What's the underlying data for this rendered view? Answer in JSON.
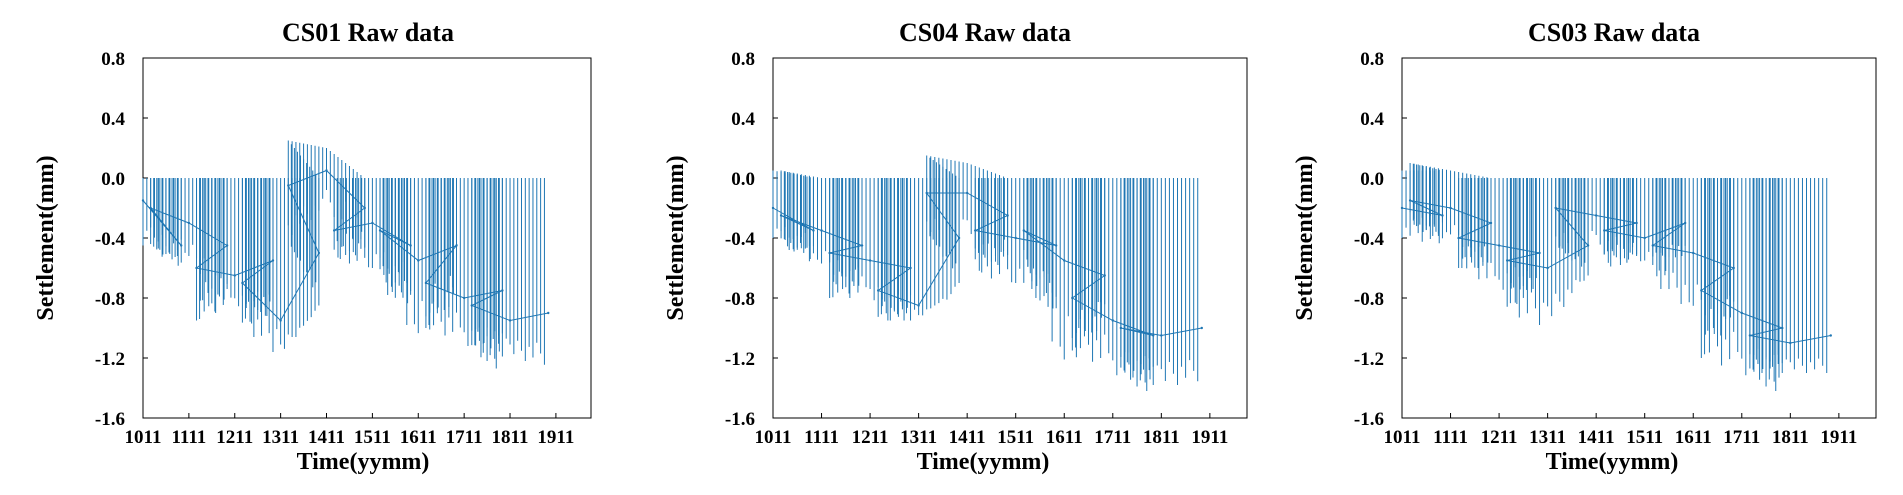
{
  "series_color": "#1f77b4",
  "chart_data": [
    {
      "type": "line",
      "title": "CS01 Raw data",
      "xlabel": "Time(yymm)",
      "ylabel": "Settlement(mm)",
      "ylim": [
        -1.6,
        0.8
      ],
      "yticks": [
        "0.8",
        "0.4",
        "0.0",
        "-0.4",
        "-0.8",
        "-1.2",
        "-1.6"
      ],
      "xticks": [
        "1011",
        "1111",
        "1211",
        "1311",
        "1411",
        "1511",
        "1611",
        "1711",
        "1811",
        "1911"
      ],
      "grid": false,
      "series": [
        {
          "x": [
            "1011",
            "1021",
            "1101",
            "1111",
            "1121",
            "1201",
            "1211",
            "1221",
            "1301",
            "1311",
            "1321",
            "1401",
            "1411",
            "1421",
            "1501",
            "1511",
            "1521",
            "1601",
            "1611",
            "1621",
            "1701",
            "1711",
            "1721",
            "1801",
            "1811",
            "1821"
          ],
          "y": [
            -0.15,
            -0.45,
            -0.2,
            -0.3,
            -0.45,
            -0.6,
            -0.65,
            -0.55,
            -0.7,
            -0.95,
            -0.5,
            -0.05,
            0.05,
            -0.2,
            -0.35,
            -0.3,
            -0.45,
            -0.35,
            -0.55,
            -0.45,
            -0.7,
            -0.8,
            -0.75,
            -0.85,
            -0.95,
            -0.9
          ],
          "min": [
            -0.45,
            -0.6,
            -0.45,
            -0.55,
            -0.85,
            -0.95,
            -0.85,
            -0.9,
            -1.0,
            -1.2,
            -0.85,
            -0.4,
            -0.2,
            -0.5,
            -0.55,
            -0.6,
            -0.85,
            -0.7,
            -1.1,
            -0.8,
            -1.0,
            -1.1,
            -1.3,
            -1.15,
            -1.2,
            -1.25
          ],
          "max": [
            0.0,
            0.0,
            0.0,
            0.0,
            0.0,
            0.0,
            0.0,
            0.0,
            0.0,
            0.0,
            0.0,
            0.25,
            0.2,
            0.0,
            0.0,
            0.0,
            0.0,
            0.0,
            0.0,
            0.0,
            0.0,
            0.0,
            0.0,
            0.0,
            0.0,
            0.0
          ]
        }
      ]
    },
    {
      "type": "line",
      "title": "CS04 Raw data",
      "xlabel": "Time(yymm)",
      "ylabel": "Settlement(mm)",
      "ylim": [
        -1.6,
        0.8
      ],
      "yticks": [
        "0.8",
        "0.4",
        "0.0",
        "-0.4",
        "-0.8",
        "-1.2",
        "-1.6"
      ],
      "xticks": [
        "1011",
        "1111",
        "1211",
        "1311",
        "1411",
        "1511",
        "1611",
        "1711",
        "1811",
        "1911"
      ],
      "grid": false,
      "series": [
        {
          "x": [
            "1011",
            "1021",
            "1101",
            "1111",
            "1121",
            "1201",
            "1211",
            "1221",
            "1301",
            "1311",
            "1321",
            "1401",
            "1411",
            "1421",
            "1501",
            "1511",
            "1521",
            "1601",
            "1611",
            "1621",
            "1701",
            "1711",
            "1721",
            "1801",
            "1811",
            "1821"
          ],
          "y": [
            -0.2,
            -0.35,
            -0.25,
            -0.35,
            -0.45,
            -0.5,
            -0.55,
            -0.6,
            -0.75,
            -0.85,
            -0.4,
            -0.1,
            -0.1,
            -0.25,
            -0.35,
            -0.4,
            -0.45,
            -0.35,
            -0.55,
            -0.65,
            -0.8,
            -0.95,
            -1.05,
            -1.0,
            -1.05,
            -1.0
          ],
          "min": [
            -0.4,
            -0.55,
            -0.45,
            -0.6,
            -0.75,
            -0.8,
            -0.8,
            -0.95,
            -0.95,
            -0.95,
            -0.7,
            -0.35,
            -0.45,
            -0.55,
            -0.65,
            -0.7,
            -0.9,
            -0.6,
            -1.3,
            -0.95,
            -1.15,
            -1.3,
            -1.45,
            -1.3,
            -1.4,
            -1.35
          ],
          "max": [
            0.05,
            0.0,
            0.05,
            0.0,
            0.0,
            0.0,
            0.0,
            0.0,
            0.0,
            0.0,
            0.0,
            0.15,
            0.1,
            0.0,
            0.0,
            0.0,
            0.0,
            0.0,
            0.0,
            0.0,
            0.0,
            0.0,
            0.0,
            0.0,
            0.0,
            0.0
          ]
        }
      ]
    },
    {
      "type": "line",
      "title": "CS03 Raw data",
      "xlabel": "Time(yymm)",
      "ylabel": "Settlement(mm)",
      "ylim": [
        -1.6,
        0.8
      ],
      "yticks": [
        "0.8",
        "0.4",
        "0.0",
        "-0.4",
        "-0.8",
        "-1.2",
        "-1.6"
      ],
      "xticks": [
        "1011",
        "1111",
        "1211",
        "1311",
        "1411",
        "1511",
        "1611",
        "1711",
        "1811",
        "1911"
      ],
      "grid": false,
      "series": [
        {
          "x": [
            "1011",
            "1021",
            "1101",
            "1111",
            "1121",
            "1201",
            "1211",
            "1221",
            "1301",
            "1311",
            "1321",
            "1401",
            "1411",
            "1421",
            "1501",
            "1511",
            "1521",
            "1601",
            "1611",
            "1621",
            "1701",
            "1711",
            "1721",
            "1801",
            "1811",
            "1821"
          ],
          "y": [
            -0.2,
            -0.25,
            -0.15,
            -0.2,
            -0.3,
            -0.4,
            -0.45,
            -0.5,
            -0.55,
            -0.6,
            -0.45,
            -0.2,
            -0.25,
            -0.3,
            -0.35,
            -0.4,
            -0.3,
            -0.45,
            -0.5,
            -0.6,
            -0.75,
            -0.9,
            -1.0,
            -1.05,
            -1.1,
            -1.05
          ],
          "min": [
            -0.4,
            -0.45,
            -0.3,
            -0.4,
            -0.6,
            -0.6,
            -0.75,
            -0.7,
            -0.9,
            -1.0,
            -0.65,
            -0.45,
            -0.5,
            -0.55,
            -0.6,
            -0.55,
            -0.5,
            -0.7,
            -0.9,
            -0.95,
            -1.2,
            -1.3,
            -1.45,
            -1.3,
            -1.3,
            -1.3
          ],
          "max": [
            0.05,
            0.05,
            0.1,
            0.05,
            0.0,
            0.0,
            0.0,
            0.0,
            0.0,
            0.0,
            0.0,
            0.0,
            0.0,
            0.0,
            0.0,
            0.0,
            0.0,
            0.0,
            0.0,
            0.0,
            0.0,
            0.0,
            0.0,
            0.0,
            0.0,
            0.0
          ]
        }
      ]
    }
  ]
}
